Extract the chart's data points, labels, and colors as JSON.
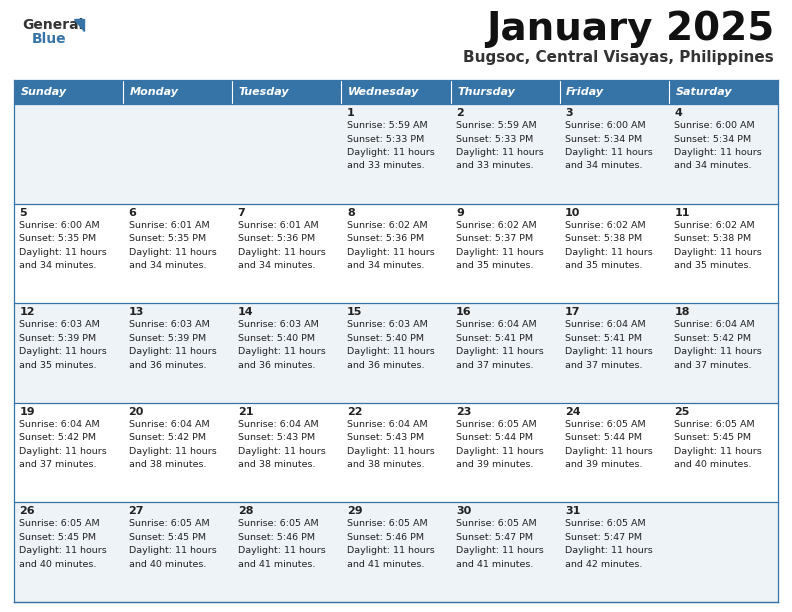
{
  "title": "January 2025",
  "subtitle": "Bugsoc, Central Visayas, Philippines",
  "days_of_week": [
    "Sunday",
    "Monday",
    "Tuesday",
    "Wednesday",
    "Thursday",
    "Friday",
    "Saturday"
  ],
  "header_bg": "#3674a8",
  "header_text": "#FFFFFF",
  "row_bg_light": "#eef3f8",
  "row_bg_white": "#FFFFFF",
  "border_color": "#3674a8",
  "text_color": "#222222",
  "calendar": [
    [
      {
        "day": "",
        "sunrise": "",
        "sunset": "",
        "hours": "",
        "minutes": ""
      },
      {
        "day": "",
        "sunrise": "",
        "sunset": "",
        "hours": "",
        "minutes": ""
      },
      {
        "day": "",
        "sunrise": "",
        "sunset": "",
        "hours": "",
        "minutes": ""
      },
      {
        "day": "1",
        "sunrise": "5:59 AM",
        "sunset": "5:33 PM",
        "hours": "11",
        "minutes": "33"
      },
      {
        "day": "2",
        "sunrise": "5:59 AM",
        "sunset": "5:33 PM",
        "hours": "11",
        "minutes": "33"
      },
      {
        "day": "3",
        "sunrise": "6:00 AM",
        "sunset": "5:34 PM",
        "hours": "11",
        "minutes": "34"
      },
      {
        "day": "4",
        "sunrise": "6:00 AM",
        "sunset": "5:34 PM",
        "hours": "11",
        "minutes": "34"
      }
    ],
    [
      {
        "day": "5",
        "sunrise": "6:00 AM",
        "sunset": "5:35 PM",
        "hours": "11",
        "minutes": "34"
      },
      {
        "day": "6",
        "sunrise": "6:01 AM",
        "sunset": "5:35 PM",
        "hours": "11",
        "minutes": "34"
      },
      {
        "day": "7",
        "sunrise": "6:01 AM",
        "sunset": "5:36 PM",
        "hours": "11",
        "minutes": "34"
      },
      {
        "day": "8",
        "sunrise": "6:02 AM",
        "sunset": "5:36 PM",
        "hours": "11",
        "minutes": "34"
      },
      {
        "day": "9",
        "sunrise": "6:02 AM",
        "sunset": "5:37 PM",
        "hours": "11",
        "minutes": "35"
      },
      {
        "day": "10",
        "sunrise": "6:02 AM",
        "sunset": "5:38 PM",
        "hours": "11",
        "minutes": "35"
      },
      {
        "day": "11",
        "sunrise": "6:02 AM",
        "sunset": "5:38 PM",
        "hours": "11",
        "minutes": "35"
      }
    ],
    [
      {
        "day": "12",
        "sunrise": "6:03 AM",
        "sunset": "5:39 PM",
        "hours": "11",
        "minutes": "35"
      },
      {
        "day": "13",
        "sunrise": "6:03 AM",
        "sunset": "5:39 PM",
        "hours": "11",
        "minutes": "36"
      },
      {
        "day": "14",
        "sunrise": "6:03 AM",
        "sunset": "5:40 PM",
        "hours": "11",
        "minutes": "36"
      },
      {
        "day": "15",
        "sunrise": "6:03 AM",
        "sunset": "5:40 PM",
        "hours": "11",
        "minutes": "36"
      },
      {
        "day": "16",
        "sunrise": "6:04 AM",
        "sunset": "5:41 PM",
        "hours": "11",
        "minutes": "37"
      },
      {
        "day": "17",
        "sunrise": "6:04 AM",
        "sunset": "5:41 PM",
        "hours": "11",
        "minutes": "37"
      },
      {
        "day": "18",
        "sunrise": "6:04 AM",
        "sunset": "5:42 PM",
        "hours": "11",
        "minutes": "37"
      }
    ],
    [
      {
        "day": "19",
        "sunrise": "6:04 AM",
        "sunset": "5:42 PM",
        "hours": "11",
        "minutes": "37"
      },
      {
        "day": "20",
        "sunrise": "6:04 AM",
        "sunset": "5:42 PM",
        "hours": "11",
        "minutes": "38"
      },
      {
        "day": "21",
        "sunrise": "6:04 AM",
        "sunset": "5:43 PM",
        "hours": "11",
        "minutes": "38"
      },
      {
        "day": "22",
        "sunrise": "6:04 AM",
        "sunset": "5:43 PM",
        "hours": "11",
        "minutes": "38"
      },
      {
        "day": "23",
        "sunrise": "6:05 AM",
        "sunset": "5:44 PM",
        "hours": "11",
        "minutes": "39"
      },
      {
        "day": "24",
        "sunrise": "6:05 AM",
        "sunset": "5:44 PM",
        "hours": "11",
        "minutes": "39"
      },
      {
        "day": "25",
        "sunrise": "6:05 AM",
        "sunset": "5:45 PM",
        "hours": "11",
        "minutes": "40"
      }
    ],
    [
      {
        "day": "26",
        "sunrise": "6:05 AM",
        "sunset": "5:45 PM",
        "hours": "11",
        "minutes": "40"
      },
      {
        "day": "27",
        "sunrise": "6:05 AM",
        "sunset": "5:45 PM",
        "hours": "11",
        "minutes": "40"
      },
      {
        "day": "28",
        "sunrise": "6:05 AM",
        "sunset": "5:46 PM",
        "hours": "11",
        "minutes": "41"
      },
      {
        "day": "29",
        "sunrise": "6:05 AM",
        "sunset": "5:46 PM",
        "hours": "11",
        "minutes": "41"
      },
      {
        "day": "30",
        "sunrise": "6:05 AM",
        "sunset": "5:47 PM",
        "hours": "11",
        "minutes": "41"
      },
      {
        "day": "31",
        "sunrise": "6:05 AM",
        "sunset": "5:47 PM",
        "hours": "11",
        "minutes": "42"
      },
      {
        "day": "",
        "sunrise": "",
        "sunset": "",
        "hours": "",
        "minutes": ""
      }
    ]
  ],
  "logo_text1": "General",
  "logo_text2": "Blue",
  "logo_color": "#3674a8",
  "fig_width": 7.92,
  "fig_height": 6.12,
  "dpi": 100
}
